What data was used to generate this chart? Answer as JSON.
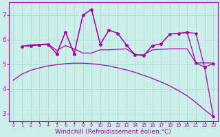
{
  "background_color": "#cceee8",
  "line_color": "#aa00aa",
  "grid_color": "#aadddd",
  "xlabel": "Windchill (Refroidissement éolien,°C)",
  "xlabel_fontsize": 6.5,
  "yticks": [
    3,
    4,
    5,
    6,
    7
  ],
  "xticks": [
    0,
    1,
    2,
    3,
    4,
    5,
    6,
    7,
    8,
    9,
    10,
    11,
    12,
    13,
    14,
    15,
    16,
    17,
    18,
    19,
    20,
    21,
    22,
    23
  ],
  "xlim": [
    -0.5,
    23.5
  ],
  "ylim": [
    2.7,
    7.5
  ],
  "smooth_x": [
    0,
    1,
    2,
    3,
    4,
    5,
    6,
    7,
    8,
    9,
    10,
    11,
    12,
    13,
    14,
    15,
    16,
    17,
    18,
    19,
    20,
    21,
    22,
    23
  ],
  "smooth_y": [
    4.35,
    4.6,
    4.75,
    4.85,
    4.93,
    4.98,
    5.02,
    5.04,
    5.04,
    5.02,
    4.98,
    4.93,
    4.85,
    4.77,
    4.67,
    4.55,
    4.42,
    4.28,
    4.12,
    3.93,
    3.72,
    3.45,
    3.15,
    2.88
  ],
  "flat_x": [
    1,
    2,
    3,
    4,
    5,
    6,
    7,
    8,
    9,
    10,
    11,
    12,
    13,
    14,
    15,
    16,
    17,
    18,
    19,
    20,
    21,
    22,
    23
  ],
  "flat_y": [
    5.72,
    5.78,
    5.8,
    5.82,
    5.55,
    5.75,
    5.62,
    5.45,
    5.45,
    5.58,
    5.58,
    5.6,
    5.62,
    5.38,
    5.38,
    5.58,
    5.6,
    5.62,
    5.62,
    5.62,
    5.05,
    5.05,
    5.05
  ],
  "jagged1_x": [
    1,
    2,
    3,
    4,
    5,
    6,
    7,
    8,
    9,
    10,
    11,
    12,
    13,
    14,
    15,
    16,
    17,
    18,
    19,
    20,
    21,
    22,
    23
  ],
  "jagged1_y": [
    5.72,
    5.75,
    5.78,
    5.8,
    5.42,
    6.3,
    5.42,
    6.98,
    7.22,
    5.8,
    6.38,
    6.25,
    5.78,
    5.38,
    5.35,
    5.75,
    5.82,
    6.22,
    6.25,
    6.28,
    6.25,
    4.88,
    5.02
  ],
  "jagged2_x": [
    1,
    2,
    3,
    4,
    5,
    6,
    7,
    8,
    9,
    10,
    11,
    12,
    13,
    14,
    15,
    16,
    17,
    18,
    19,
    20,
    21,
    22,
    23
  ],
  "jagged2_y": [
    5.72,
    5.75,
    5.78,
    5.8,
    5.42,
    6.3,
    5.42,
    6.98,
    7.22,
    5.8,
    6.38,
    6.25,
    5.78,
    5.38,
    5.35,
    5.75,
    5.82,
    6.22,
    6.25,
    6.28,
    5.05,
    4.88,
    2.88
  ]
}
